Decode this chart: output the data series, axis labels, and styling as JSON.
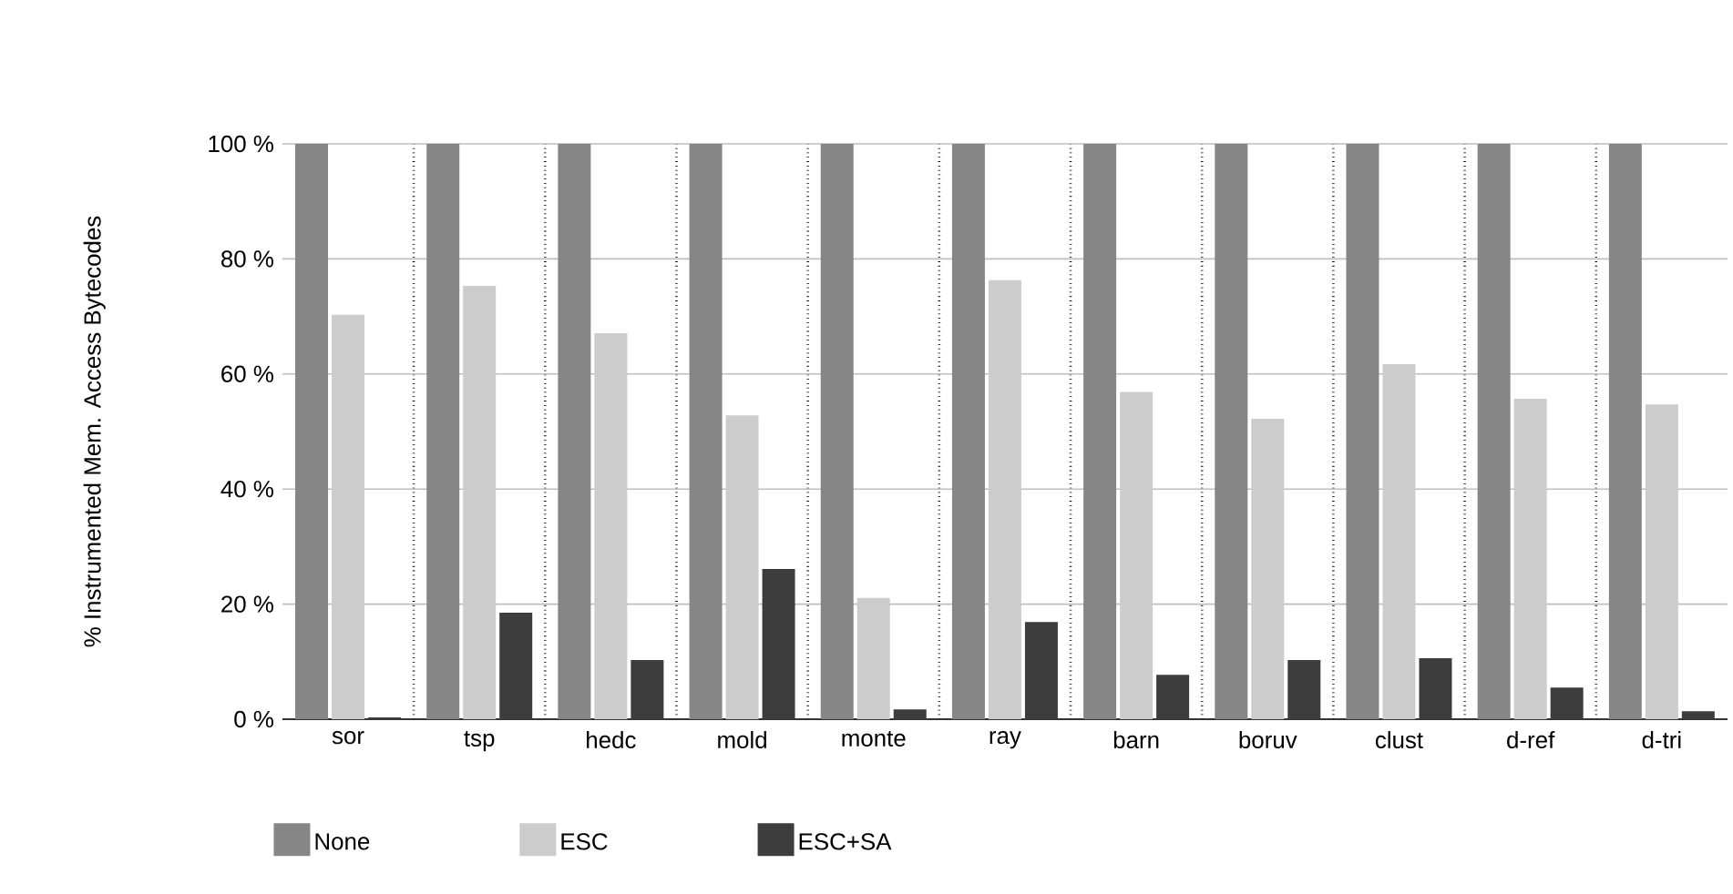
{
  "chart_data": {
    "type": "bar",
    "ylabel": "% Instrumented Mem. Access Bytecodes",
    "categories": [
      "sor",
      "tsp",
      "hedc",
      "mold",
      "monte",
      "ray",
      "barn",
      "boruv",
      "clust",
      "d-ref",
      "d-tri"
    ],
    "series": [
      {
        "name": "None",
        "color": "#858685",
        "values": [
          100,
          100,
          100,
          100,
          100,
          100,
          100,
          100,
          100,
          100,
          100
        ]
      },
      {
        "name": "ESC",
        "color": "#cbcccb",
        "values": [
          70.3,
          75.3,
          67.1,
          52.8,
          21.1,
          76.3,
          56.9,
          52.2,
          61.7,
          55.7,
          54.7
        ]
      },
      {
        "name": "ESC+SA",
        "color": "#3c3d3c",
        "values": [
          0.3,
          18.5,
          10.3,
          26.1,
          1.7,
          16.9,
          7.7,
          10.3,
          10.6,
          5.5,
          1.4
        ]
      }
    ],
    "ylim": [
      0,
      100
    ],
    "yticks": [
      {
        "value": 0,
        "label": "0 %"
      },
      {
        "value": 20,
        "label": "20 %"
      },
      {
        "value": 40,
        "label": "40 %"
      },
      {
        "value": 60,
        "label": "60 %"
      },
      {
        "value": 80,
        "label": "80 %"
      },
      {
        "value": 100,
        "label": "100 %"
      }
    ],
    "grid": "y",
    "legend": "bottom left"
  }
}
